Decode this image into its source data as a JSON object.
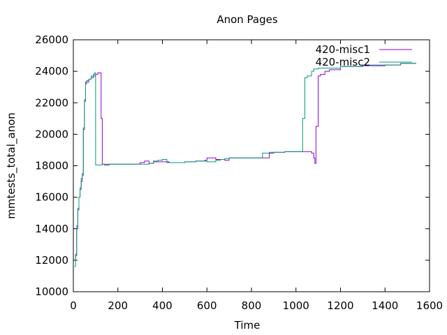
{
  "chart_data": {
    "type": "line",
    "title": "Anon Pages",
    "xlabel": "Time",
    "ylabel": "mmtests_total_anon",
    "xlim": [
      0,
      1600
    ],
    "ylim": [
      10000,
      26000
    ],
    "xticks": [
      0,
      200,
      400,
      600,
      800,
      1000,
      1200,
      1400,
      1600
    ],
    "yticks": [
      10000,
      12000,
      14000,
      16000,
      18000,
      20000,
      22000,
      24000,
      26000
    ],
    "grid": false,
    "legend_position": "top-right",
    "series": [
      {
        "name": "420-misc1",
        "color": "#9400d3",
        "x": [
          5,
          10,
          15,
          20,
          25,
          30,
          35,
          40,
          45,
          50,
          55,
          60,
          70,
          80,
          90,
          100,
          110,
          120,
          125,
          130,
          140,
          160,
          200,
          250,
          300,
          320,
          340,
          360,
          400,
          430,
          500,
          550,
          590,
          600,
          620,
          640,
          680,
          700,
          750,
          800,
          850,
          870,
          880,
          900,
          950,
          1000,
          1050,
          1070,
          1080,
          1085,
          1090,
          1100,
          1110,
          1130,
          1150,
          1200,
          1300,
          1400,
          1460,
          1470,
          1540
        ],
        "y": [
          12000,
          12300,
          14000,
          15200,
          16000,
          16500,
          17000,
          17400,
          20300,
          22100,
          23300,
          23400,
          23500,
          23600,
          23700,
          23800,
          23900,
          23900,
          21000,
          18100,
          18050,
          18100,
          18100,
          18100,
          18200,
          18300,
          18150,
          18250,
          18250,
          18200,
          18250,
          18300,
          18350,
          18500,
          18500,
          18400,
          18350,
          18500,
          18500,
          18500,
          18500,
          18500,
          18800,
          18850,
          18900,
          18900,
          18900,
          18800,
          18500,
          18150,
          20500,
          23700,
          23800,
          24000,
          24100,
          24300,
          24350,
          24400,
          24400,
          24500,
          24500
        ]
      },
      {
        "name": "420-misc2",
        "color": "#009e73",
        "x": [
          5,
          10,
          15,
          20,
          25,
          30,
          35,
          40,
          45,
          50,
          55,
          60,
          70,
          80,
          90,
          95,
          100,
          110,
          130,
          160,
          200,
          250,
          300,
          340,
          360,
          380,
          400,
          420,
          450,
          500,
          550,
          600,
          620,
          640,
          660,
          680,
          700,
          750,
          800,
          830,
          850,
          880,
          900,
          950,
          1000,
          1020,
          1030,
          1040,
          1050,
          1070,
          1080,
          1100,
          1150,
          1200,
          1300,
          1400,
          1450,
          1470,
          1540
        ],
        "y": [
          11600,
          12400,
          14200,
          15300,
          16000,
          16600,
          17200,
          17500,
          20400,
          22200,
          23200,
          23300,
          23500,
          23700,
          23800,
          23900,
          18050,
          18050,
          18100,
          18100,
          18100,
          18100,
          18100,
          18150,
          18300,
          18350,
          18400,
          18200,
          18200,
          18250,
          18300,
          18250,
          18250,
          18350,
          18400,
          18450,
          18500,
          18500,
          18500,
          18500,
          18800,
          18850,
          18850,
          18900,
          18900,
          18900,
          21000,
          23600,
          23700,
          24000,
          24150,
          24200,
          24200,
          24300,
          24400,
          24400,
          24400,
          24500,
          24500
        ]
      }
    ]
  }
}
